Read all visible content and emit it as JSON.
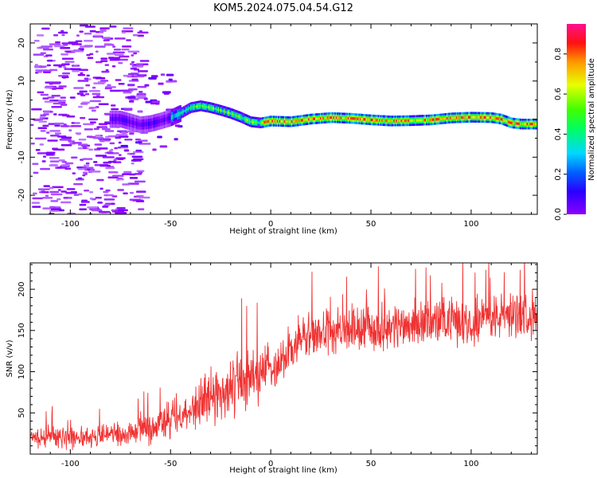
{
  "figure": {
    "title": "KOM5.2024.075.04.54.G12"
  },
  "chart_data": [
    {
      "type": "heatmap",
      "title": "KOM5.2024.075.04.54.G12",
      "xlabel": "Height of straight line (km)",
      "ylabel": "Frequency (Hz)",
      "xlim": [
        -120,
        133
      ],
      "ylim": [
        -25,
        25
      ],
      "xticks": [
        -100,
        -50,
        0,
        50,
        100
      ],
      "yticks": [
        -20,
        -10,
        0,
        10,
        20
      ],
      "colorbar": {
        "label": "Normalized spectral amplitude",
        "range": [
          0,
          0.95
        ],
        "ticks": [
          0.0,
          0.2,
          0.4,
          0.6,
          0.8
        ],
        "colormap": "rainbow (purple-blue-cyan-green-yellow-red-pink)"
      },
      "ridge_frequency_trace": {
        "x": [
          -75,
          -65,
          -60,
          -55,
          -50,
          -45,
          -40,
          -35,
          -30,
          -25,
          -20,
          -15,
          -10,
          -5,
          0,
          10,
          20,
          30,
          40,
          50,
          60,
          70,
          80,
          90,
          100,
          110,
          115,
          120,
          125,
          133
        ],
        "y": [
          0,
          -1.5,
          -1.2,
          -0.5,
          0.3,
          1.5,
          3,
          3.5,
          3,
          2.3,
          1.5,
          0.5,
          -0.7,
          -1,
          -0.5,
          -0.7,
          0,
          0.4,
          0.2,
          -0.2,
          -0.5,
          -0.4,
          -0.2,
          0.3,
          0.5,
          0.4,
          0,
          -1,
          -1.3,
          -1.3
        ]
      },
      "grid": false
    },
    {
      "type": "line",
      "title": "",
      "xlabel": "Height of straight line (km)",
      "ylabel": "SNR (v/v)",
      "xlim": [
        -120,
        133
      ],
      "ylim": [
        0,
        232
      ],
      "xticks": [
        -100,
        -50,
        0,
        50,
        100
      ],
      "yticks": [
        50,
        100,
        150,
        200
      ],
      "series": [
        {
          "color": "#f03232",
          "x": [
            -120,
            -110,
            -100,
            -90,
            -80,
            -70,
            -60,
            -50,
            -40,
            -30,
            -20,
            -15,
            -10,
            -5,
            0,
            5,
            10,
            15,
            20,
            30,
            40,
            50,
            60,
            70,
            80,
            90,
            100,
            110,
            120,
            133
          ],
          "values": [
            20,
            22,
            21,
            22,
            24,
            25,
            35,
            40,
            55,
            70,
            80,
            85,
            95,
            100,
            105,
            115,
            125,
            140,
            145,
            148,
            150,
            152,
            155,
            158,
            160,
            162,
            162,
            165,
            170,
            170
          ],
          "noise_amplitude": [
            12,
            12,
            12,
            12,
            12,
            12,
            20,
            22,
            28,
            30,
            30,
            40,
            35,
            30,
            25,
            25,
            25,
            25,
            25,
            25,
            25,
            25,
            25,
            25,
            25,
            25,
            25,
            25,
            25,
            25
          ]
        }
      ],
      "grid": false
    }
  ]
}
